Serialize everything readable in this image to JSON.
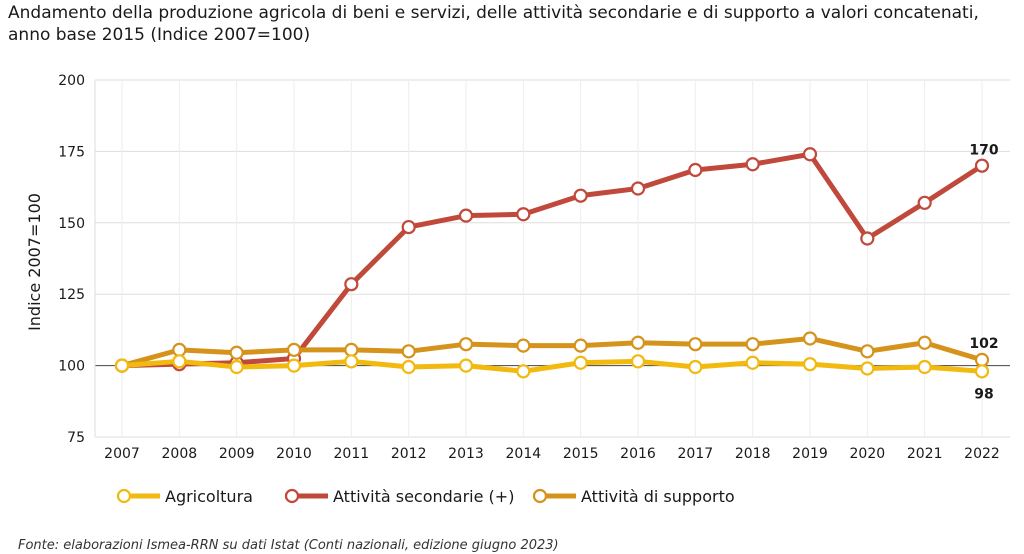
{
  "chart_data": {
    "type": "line",
    "title": "Andamento della produzione agricola di beni e servizi, delle attività secondarie e di supporto a valori concatenati, anno base 2015 (Indice 2007=100)",
    "title_lines": [
      "Andamento della produzione agricola di beni e servizi, delle attività secondarie e di supporto a valori concatenati,",
      "anno base 2015 (Indice 2007=100)"
    ],
    "xlabel": "",
    "ylabel": "Indice 2007=100",
    "ylim": [
      75,
      200
    ],
    "yticks": [
      75,
      100,
      125,
      150,
      175,
      200
    ],
    "grid": true,
    "legend_position": "bottom",
    "x": [
      "2007",
      "2008",
      "2009",
      "2010",
      "2011",
      "2012",
      "2013",
      "2014",
      "2015",
      "2016",
      "2017",
      "2018",
      "2019",
      "2020",
      "2021",
      "2022"
    ],
    "series": [
      {
        "name": "Agricoltura",
        "color": "#f2b90f",
        "values": [
          100,
          101.5,
          99.5,
          100,
          101.5,
          99.5,
          100,
          98,
          101,
          101.5,
          99.5,
          101,
          100.5,
          99,
          99.5,
          98
        ],
        "end_label": "98"
      },
      {
        "name": "Attività secondarie (+)",
        "color": "#c0493b",
        "values": [
          100,
          100.5,
          101,
          102.5,
          128.5,
          148.5,
          152.5,
          153,
          159.5,
          162,
          168.5,
          170.5,
          174,
          144.5,
          157,
          170
        ],
        "end_label": "170"
      },
      {
        "name": "Attività di supporto",
        "color": "#d6931c",
        "values": [
          100,
          105.5,
          104.5,
          105.5,
          105.5,
          105,
          107.5,
          107,
          107,
          108,
          107.5,
          107.5,
          109.5,
          105,
          108,
          102
        ],
        "end_label": "102"
      }
    ],
    "source": "Fonte: elaborazioni Ismea-RRN su dati Istat (Conti nazionali, edizione giugno 2023)"
  }
}
